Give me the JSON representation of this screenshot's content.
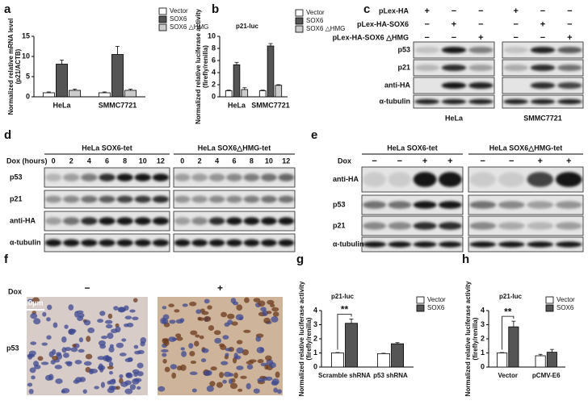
{
  "chart_data": [
    {
      "type": "bar",
      "panel": "a",
      "ylabel": [
        "Normalized relative mRNA level",
        "(p21/ACTB)"
      ],
      "categories": [
        "HeLa",
        "SMMC7721"
      ],
      "series": [
        {
          "name": "Vector",
          "color": "#ffffff",
          "values": [
            1,
            1
          ],
          "errors": [
            0.2,
            0.2
          ]
        },
        {
          "name": "SOX6",
          "color": "#555555",
          "values": [
            8.1,
            10.5
          ],
          "errors": [
            1.0,
            2.0
          ]
        },
        {
          "name": "SOX6 △HMG",
          "color": "#cccccc",
          "values": [
            1.6,
            1.6
          ],
          "errors": [
            0.3,
            0.3
          ]
        }
      ],
      "ylim": [
        0,
        15
      ],
      "yticks": [
        0,
        5,
        10,
        15
      ],
      "legend": "right"
    },
    {
      "type": "bar",
      "panel": "b",
      "title": "p21-luc",
      "ylabel": [
        "Normalized relative luciferase activity",
        "(firefly/renilla)"
      ],
      "categories": [
        "HeLa",
        "SMMC7721"
      ],
      "series": [
        {
          "name": "Vector",
          "color": "#ffffff",
          "values": [
            1,
            1
          ],
          "errors": [
            0.1,
            0.1
          ]
        },
        {
          "name": "SOX6",
          "color": "#555555",
          "values": [
            5.3,
            8.4
          ],
          "errors": [
            0.4,
            0.4
          ]
        },
        {
          "name": "SOX6 △HMG",
          "color": "#cccccc",
          "values": [
            1.2,
            1.9
          ],
          "errors": [
            0.3,
            0.1
          ]
        }
      ],
      "ylim": [
        0,
        10
      ],
      "yticks": [
        0,
        2,
        4,
        6,
        8,
        10
      ],
      "legend": "right"
    },
    {
      "type": "bar",
      "panel": "g",
      "title": "p21-luc",
      "ylabel": [
        "Normalized relative luciferase activity",
        "(firefly/renilla)"
      ],
      "categories": [
        "Scramble shRNA",
        "p53 shRNA"
      ],
      "series": [
        {
          "name": "Vector",
          "color": "#ffffff",
          "values": [
            1,
            0.95
          ],
          "errors": [
            0.03,
            0.03
          ]
        },
        {
          "name": "SOX6",
          "color": "#555555",
          "values": [
            3.1,
            1.65
          ],
          "errors": [
            0.3,
            0.08
          ]
        }
      ],
      "ylim": [
        0,
        4
      ],
      "yticks": [
        0,
        1,
        2,
        3,
        4
      ],
      "legend": "right",
      "annotation": "**"
    },
    {
      "type": "bar",
      "panel": "h",
      "title": "p21-luc",
      "ylabel": [
        "Normalized relative luciferase activity",
        "(firefly/renilla)"
      ],
      "categories": [
        "Vector",
        "pCMV-E6"
      ],
      "series": [
        {
          "name": "Vector",
          "color": "#ffffff",
          "values": [
            1,
            0.8
          ],
          "errors": [
            0.03,
            0.1
          ]
        },
        {
          "name": "SOX6",
          "color": "#555555",
          "values": [
            2.85,
            1.05
          ],
          "errors": [
            0.4,
            0.2
          ]
        }
      ],
      "ylim": [
        0,
        4
      ],
      "yticks": [
        0,
        1,
        2,
        3,
        4
      ],
      "legend": "right",
      "annotation": "**"
    }
  ],
  "panel_c": {
    "label": "c",
    "conditions": [
      {
        "name": "pLex-HA",
        "signs": [
          "+",
          "−",
          "−",
          "+",
          "−",
          "−"
        ]
      },
      {
        "name": "pLex-HA-SOX6",
        "signs": [
          "−",
          "+",
          "−",
          "−",
          "+",
          "−"
        ]
      },
      {
        "name": "pLex-HA-SOX6 △HMG",
        "signs": [
          "−",
          "−",
          "+",
          "−",
          "−",
          "+"
        ]
      }
    ],
    "rows": [
      "p53",
      "p21",
      "anti-HA",
      "α-tubulin"
    ],
    "groups": [
      "HeLa",
      "SMMC7721"
    ]
  },
  "panel_d": {
    "label": "d",
    "dox_label": "Dox (hours)",
    "groups": [
      "HeLa SOX6-tet",
      "HeLa SOX6△HMG-tet"
    ],
    "timepoints": [
      [
        "0",
        "2",
        "4",
        "6",
        "8",
        "10",
        "12"
      ],
      [
        "0",
        "2",
        "4",
        "6",
        "8",
        "10",
        "12"
      ]
    ],
    "rows": [
      "p53",
      "p21",
      "anti-HA",
      "α-tubulin"
    ]
  },
  "panel_e": {
    "label": "e",
    "dox_label": "Dox",
    "groups": [
      "HeLa SOX6-tet",
      "HeLa SOX6△HMG-tet"
    ],
    "signs": [
      [
        "−",
        "−",
        "+",
        "+"
      ],
      [
        "−",
        "−",
        "+",
        "+"
      ]
    ],
    "rows": [
      "anti-HA",
      "p53",
      "p21",
      "α-tubulin"
    ]
  },
  "panel_f": {
    "label": "f",
    "dox_label": "Dox",
    "conditions": [
      "−",
      "+"
    ],
    "scale_bar": "10μm",
    "stain": "p53"
  }
}
